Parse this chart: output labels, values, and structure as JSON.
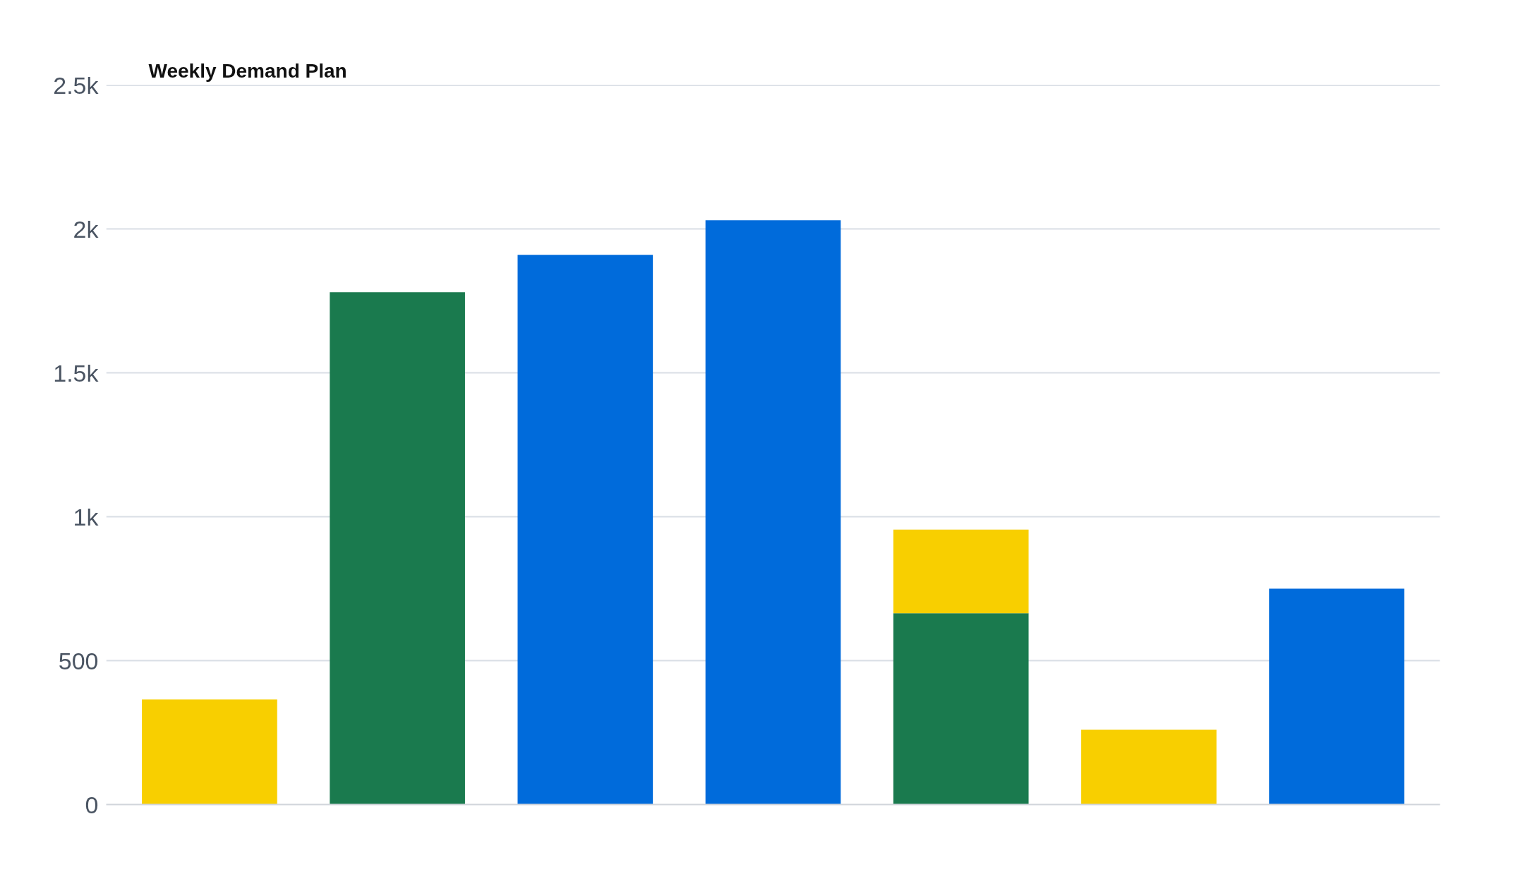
{
  "chart_data": {
    "type": "bar",
    "title": "Weekly Demand Plan",
    "stacked": true,
    "categories": [
      null,
      null,
      null,
      null,
      null,
      null,
      null
    ],
    "series": [
      {
        "color": "#1a7a4e",
        "values": [
          null,
          1780,
          null,
          null,
          665,
          null,
          null
        ]
      },
      {
        "color": "#f8cf00",
        "values": [
          365,
          null,
          null,
          null,
          290,
          260,
          null
        ]
      },
      {
        "color": "#006bdb",
        "values": [
          null,
          null,
          1910,
          2030,
          null,
          null,
          750
        ]
      }
    ],
    "ylim": [
      0,
      2500
    ],
    "yticks": [
      0,
      500,
      {
        "value": 1000,
        "label": "1k"
      },
      {
        "value": 1500,
        "label": "1.5k"
      },
      {
        "value": 2000,
        "label": "2k"
      },
      {
        "value": 2500,
        "label": "2.5k"
      }
    ],
    "grid": "y",
    "tick_labels": "y"
  }
}
